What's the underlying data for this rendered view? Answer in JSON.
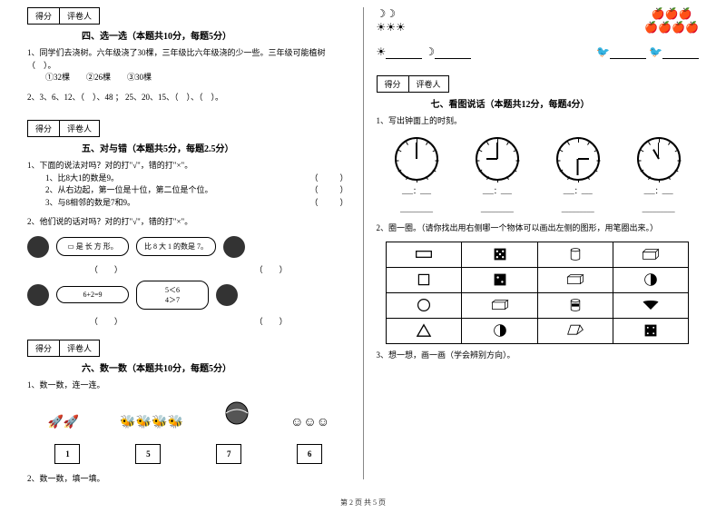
{
  "score_labels": {
    "score": "得分",
    "grader": "评卷人"
  },
  "section4": {
    "title": "四、选一选（本题共10分，每题5分）",
    "q1": "1、同学们去浇树。六年级浇了30棵，三年级比六年级浇的少一些。三年级可能植树（　）。",
    "q1_options": "①32棵　　②26棵　　③30棵",
    "q2": "2、3、6、12、（　）、48 ； 25、20、15、（　）、（　）。"
  },
  "section5": {
    "title": "五、对与错（本题共5分，每题2.5分）",
    "q1": "1、下面的说法对吗？对的打\"√\"，错的打\"×\"。",
    "q1_1": "1、比8大1的数是9。",
    "q1_2": "2、从右边起，第一位是十位，第二位是个位。",
    "q1_3": "3、与8相邻的数是7和9。",
    "q2": "2、他们说的话对吗？对的打\"√\"，错的打\"×\"。",
    "bubble1": "▭ 是 长 方 形。",
    "bubble2": "比 8 大 1 的数是 7。",
    "bubble3": "6+2=9",
    "bubble4_line1": "5＜6",
    "bubble4_line2": "4＞7",
    "paren": "（　　）"
  },
  "section6": {
    "title": "六、数一数（本题共10分，每题5分）",
    "q1": "1、数一数，连一连。",
    "q2": "2、数一数，填一填。",
    "counts": [
      "1",
      "5",
      "7",
      "6"
    ]
  },
  "section7": {
    "title": "七、看图说话（本题共12分，每题4分）",
    "q1": "1、写出钟面上的时刻。",
    "q2": "2、圈一圈。（请你找出用右侧哪一个物体可以画出左侧的图形，用笔圈出来。）",
    "q3": "3、想一想，画一画（学会辨别方向）。",
    "colon": "：",
    "clocks": [
      {
        "h": 0,
        "m": 0
      },
      {
        "h": -90,
        "m": 0
      },
      {
        "h": 90,
        "m": 180
      },
      {
        "h": -30,
        "m": 0
      }
    ]
  },
  "top_right": {
    "moons": "☽☽",
    "suns": "☀☀☀",
    "single_sun": "☀",
    "single_moon": "☽",
    "apples_top": "🍎🍎🍎",
    "apples_bottom": "🍎🍎🍎🍎",
    "bird": "🐦"
  },
  "footer": "第 2 页 共 5 页"
}
